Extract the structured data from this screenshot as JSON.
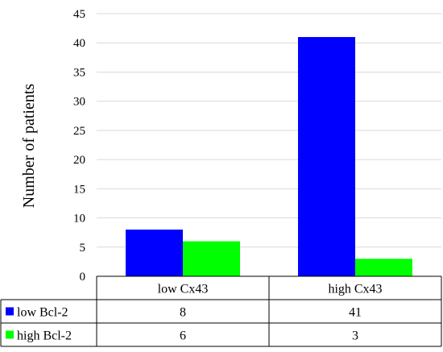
{
  "chart_data": {
    "type": "bar",
    "title": "",
    "xlabel": "",
    "ylabel": "Number of patients",
    "ylim": [
      0,
      45
    ],
    "yticks": [
      0,
      5,
      10,
      15,
      20,
      25,
      30,
      35,
      40,
      45
    ],
    "grid": true,
    "legend": "data table",
    "categories": [
      "low Cx43",
      "high Cx43"
    ],
    "series": [
      {
        "name": "low Bcl-2",
        "values": [
          8,
          41
        ],
        "color": "#0000ff"
      },
      {
        "name": "high Bcl-2",
        "values": [
          6,
          3
        ],
        "color": "#00ff00"
      }
    ]
  }
}
